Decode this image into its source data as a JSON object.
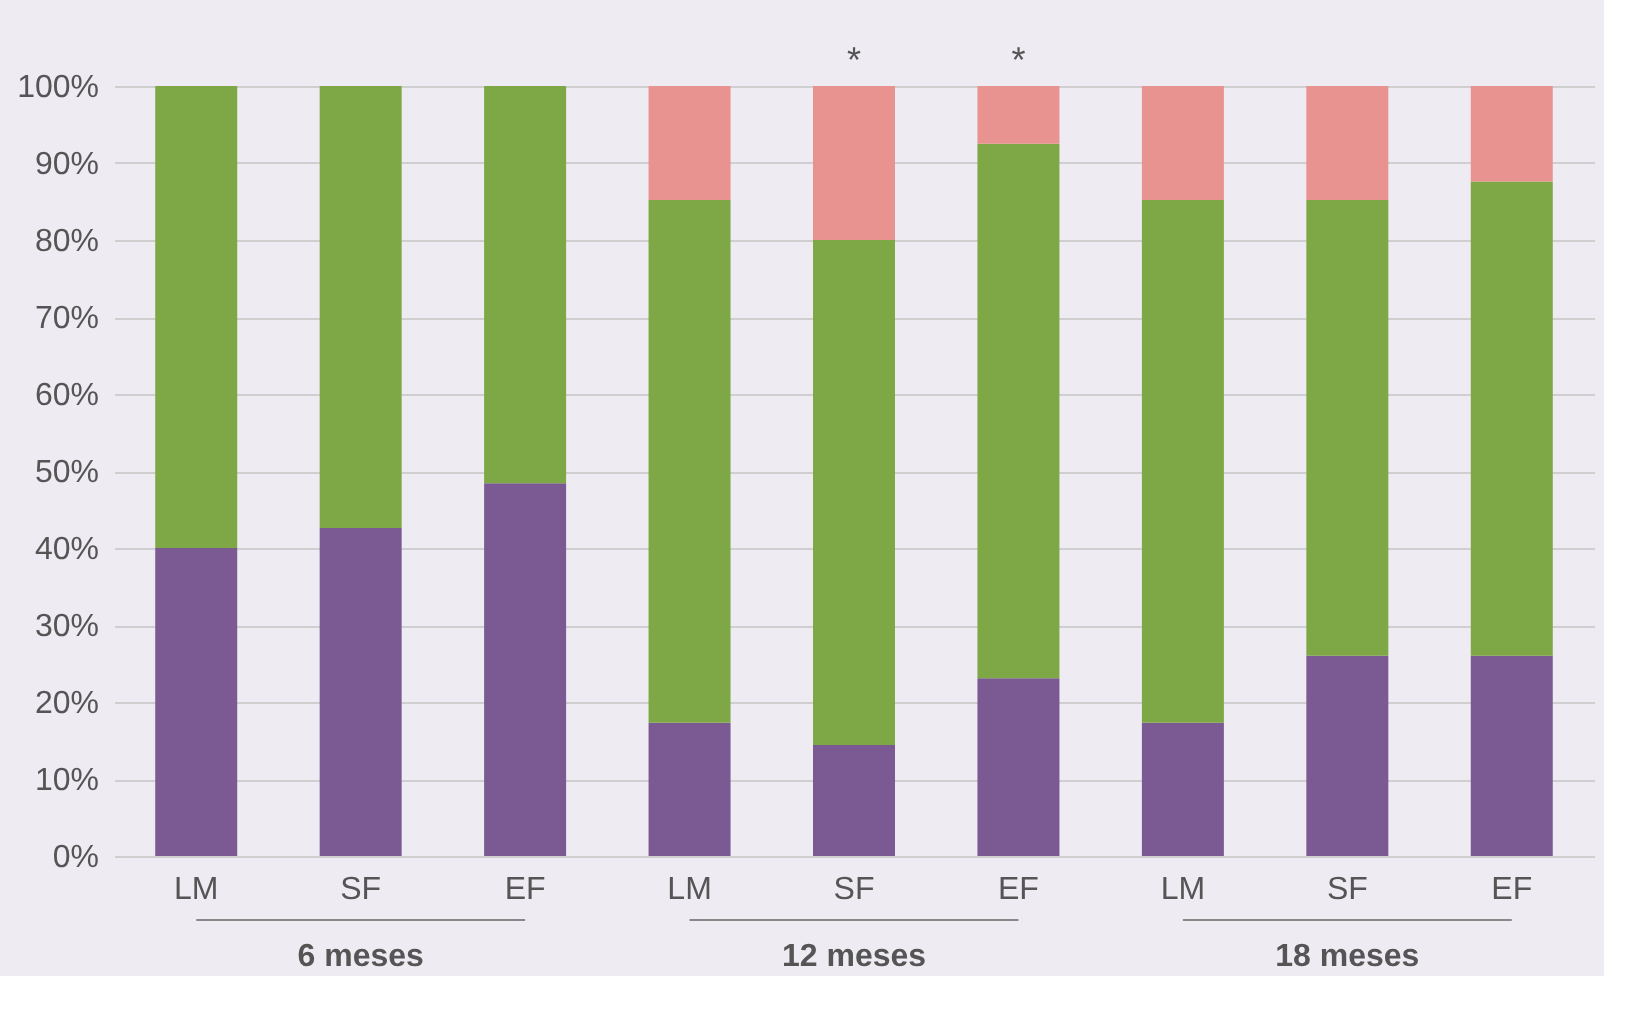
{
  "chart_data": {
    "type": "bar",
    "stacked": true,
    "categories": [
      "LM",
      "SF",
      "EF",
      "LM",
      "SF",
      "EF",
      "LM",
      "SF",
      "EF"
    ],
    "series": [
      {
        "color": "#7b5a94",
        "values": [
          40.0,
          42.6,
          48.4,
          17.3,
          14.4,
          23.1,
          17.3,
          26.0,
          26.0
        ]
      },
      {
        "color": "#7ea845",
        "values": [
          60.0,
          57.4,
          51.6,
          67.9,
          65.6,
          69.4,
          67.9,
          59.2,
          61.6
        ]
      },
      {
        "color": "#e8938f",
        "values": [
          0,
          0,
          0,
          14.8,
          20.0,
          7.5,
          14.8,
          14.8,
          12.4
        ],
        "value_labels": [
          null,
          null,
          null,
          null,
          "*",
          "*",
          null,
          null,
          null
        ]
      }
    ],
    "ylim": [
      0,
      100
    ],
    "yticks": [
      {
        "value": 0,
        "label": "0%"
      },
      {
        "value": 10,
        "label": "10%"
      },
      {
        "value": 20,
        "label": "20%"
      },
      {
        "value": 30,
        "label": "30%"
      },
      {
        "value": 40,
        "label": "40%"
      },
      {
        "value": 50,
        "label": "50%"
      },
      {
        "value": 60,
        "label": "60%"
      },
      {
        "value": 70,
        "label": "70%"
      },
      {
        "value": 80,
        "label": "80%"
      },
      {
        "value": 90,
        "label": "90%"
      },
      {
        "value": 100,
        "label": "100%"
      }
    ],
    "grid": "y",
    "annotations": [
      "6 meses",
      "12 meses",
      "18 meses"
    ]
  }
}
